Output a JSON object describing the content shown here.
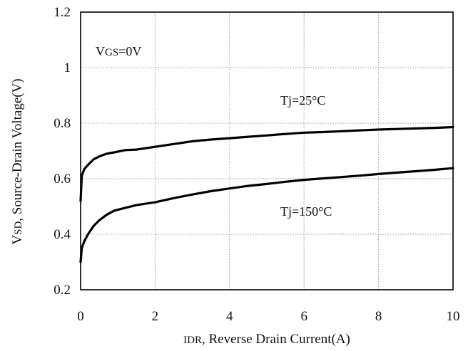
{
  "chart_data": {
    "type": "line",
    "xlabel": "IDR, Reverse Drain Current(A)",
    "ylabel": "VSD, Source-Drain Voltage(V)",
    "xlim": [
      0,
      10
    ],
    "ylim": [
      0.2,
      1.2
    ],
    "xticks": [
      "0",
      "2",
      "4",
      "6",
      "8",
      "10"
    ],
    "yticks": [
      "0.2",
      "0.4",
      "0.6",
      "0.8",
      "1",
      "1.2"
    ],
    "grid": true,
    "annotations": [
      "VGS=0V",
      "Tj=25°C",
      "Tj=150°C"
    ],
    "series": [
      {
        "name": "Tj=25°C",
        "x": [
          0.0,
          0.03,
          0.1,
          0.2,
          0.35,
          0.5,
          0.7,
          0.9,
          1.2,
          1.5,
          2.0,
          2.5,
          3.0,
          3.5,
          4.0,
          4.5,
          5.0,
          5.5,
          6.0,
          6.5,
          7.0,
          7.5,
          8.0,
          8.5,
          9.0,
          9.5,
          10.0
        ],
        "y": [
          0.52,
          0.61,
          0.635,
          0.65,
          0.67,
          0.68,
          0.69,
          0.695,
          0.703,
          0.705,
          0.715,
          0.725,
          0.735,
          0.741,
          0.746,
          0.751,
          0.756,
          0.761,
          0.766,
          0.768,
          0.771,
          0.774,
          0.777,
          0.779,
          0.781,
          0.783,
          0.786
        ]
      },
      {
        "name": "Tj=150°C",
        "x": [
          0.0,
          0.03,
          0.1,
          0.2,
          0.35,
          0.5,
          0.7,
          0.9,
          1.2,
          1.5,
          2.0,
          2.5,
          3.0,
          3.5,
          4.0,
          4.5,
          5.0,
          5.5,
          6.0,
          6.5,
          7.0,
          7.5,
          8.0,
          8.5,
          9.0,
          9.5,
          10.0
        ],
        "y": [
          0.3,
          0.35,
          0.375,
          0.4,
          0.43,
          0.45,
          0.47,
          0.485,
          0.495,
          0.505,
          0.515,
          0.53,
          0.543,
          0.555,
          0.565,
          0.574,
          0.581,
          0.589,
          0.596,
          0.601,
          0.606,
          0.611,
          0.617,
          0.622,
          0.627,
          0.632,
          0.638
        ]
      }
    ]
  }
}
